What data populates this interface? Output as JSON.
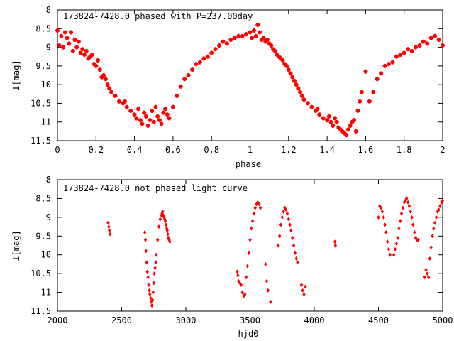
{
  "chart_data": [
    {
      "type": "scatter",
      "title": "173824-7428.0 phased with P=237.00day",
      "xlabel": "phase",
      "ylabel": "I[mag]",
      "xlim": [
        0,
        2
      ],
      "ylim": [
        8,
        11.5
      ],
      "y_inverted": true,
      "x_ticks": [
        "0",
        "0.2",
        "0.4",
        "0.6",
        "0.8",
        "1",
        "1.2",
        "1.4",
        "1.6",
        "1.8",
        "2"
      ],
      "y_ticks": [
        "8",
        "8.5",
        "9",
        "9.5",
        "10",
        "10.5",
        "11",
        "11.5"
      ],
      "grid": false,
      "marker": "plus-cross",
      "color": "#ff0000",
      "series": [
        {
          "x": [
            0.0,
            0.01,
            0.02,
            0.03,
            0.04,
            0.05,
            0.06,
            0.07,
            0.08,
            0.09,
            0.1,
            0.11,
            0.12,
            0.13,
            0.14,
            0.15,
            0.16,
            0.17,
            0.18,
            0.19,
            0.2,
            0.21,
            0.22,
            0.23,
            0.24,
            0.25,
            0.26,
            0.27,
            0.28,
            0.3,
            0.32,
            0.34,
            0.35,
            0.36,
            0.38,
            0.4,
            0.41,
            0.42,
            0.43,
            0.44,
            0.45,
            0.46,
            0.47,
            0.48,
            0.49,
            0.5,
            0.51,
            0.52,
            0.53,
            0.54,
            0.55,
            0.56,
            0.57,
            0.58,
            0.6,
            0.62,
            0.64,
            0.66,
            0.68,
            0.7,
            0.72,
            0.74,
            0.76,
            0.78,
            0.8,
            0.82,
            0.84,
            0.86,
            0.88,
            0.9,
            0.92,
            0.94,
            0.96,
            0.98,
            1.0,
            1.01,
            1.02,
            1.03,
            1.04,
            1.05,
            1.06,
            1.07,
            1.08,
            1.09,
            1.1,
            1.11,
            1.12,
            1.13,
            1.14,
            1.15,
            1.16,
            1.17,
            1.18,
            1.19,
            1.2,
            1.21,
            1.22,
            1.23,
            1.24,
            1.25,
            1.26,
            1.27,
            1.28,
            1.3,
            1.32,
            1.34,
            1.35,
            1.36,
            1.38,
            1.4,
            1.41,
            1.42,
            1.43,
            1.44,
            1.45,
            1.46,
            1.47,
            1.48,
            1.49,
            1.5,
            1.51,
            1.52,
            1.53,
            1.54,
            1.55,
            1.56,
            1.57,
            1.58,
            1.6,
            1.62,
            1.64,
            1.66,
            1.68,
            1.7,
            1.72,
            1.74,
            1.76,
            1.78,
            1.8,
            1.82,
            1.84,
            1.86,
            1.88,
            1.9,
            1.92,
            1.94,
            1.96,
            1.98,
            2.0
          ],
          "y": [
            8.55,
            8.95,
            8.7,
            9.0,
            8.6,
            8.75,
            8.9,
            8.6,
            9.1,
            8.8,
            9.0,
            8.85,
            9.15,
            9.05,
            9.2,
            9.1,
            9.3,
            9.25,
            9.2,
            9.45,
            9.5,
            9.35,
            9.6,
            9.8,
            9.75,
            9.85,
            10.0,
            10.1,
            10.2,
            10.3,
            10.45,
            10.5,
            10.45,
            10.6,
            10.7,
            10.8,
            10.9,
            10.65,
            10.95,
            11.05,
            10.75,
            10.85,
            11.1,
            10.95,
            10.7,
            11.0,
            10.6,
            10.85,
            10.95,
            11.05,
            10.75,
            10.65,
            10.8,
            10.9,
            10.6,
            10.3,
            10.05,
            9.85,
            9.75,
            9.6,
            9.45,
            9.4,
            9.3,
            9.25,
            9.15,
            9.05,
            8.95,
            8.85,
            8.9,
            8.8,
            8.75,
            8.7,
            8.7,
            8.65,
            8.6,
            8.75,
            8.55,
            8.7,
            8.4,
            8.6,
            8.8,
            8.75,
            8.85,
            8.8,
            8.9,
            8.95,
            9.05,
            9.1,
            9.2,
            9.25,
            9.3,
            9.35,
            9.45,
            9.5,
            9.6,
            9.7,
            9.8,
            9.9,
            10.0,
            10.1,
            10.2,
            10.3,
            10.4,
            10.5,
            10.6,
            10.7,
            10.65,
            10.8,
            10.9,
            10.95,
            10.85,
            11.0,
            11.1,
            10.9,
            11.0,
            11.15,
            11.2,
            11.25,
            11.3,
            11.35,
            11.2,
            11.1,
            11.0,
            10.95,
            11.25,
            10.7,
            10.45,
            10.2,
            9.65,
            10.45,
            10.2,
            9.85,
            9.7,
            9.5,
            9.45,
            9.4,
            9.25,
            9.2,
            9.15,
            9.05,
            9.1,
            9.0,
            8.95,
            8.85,
            8.9,
            8.75,
            8.7,
            8.8,
            8.95
          ]
        }
      ]
    },
    {
      "type": "scatter",
      "title": "173824-7428.0 not phased light curve",
      "xlabel": "hjd0",
      "ylabel": "I[mag]",
      "xlim": [
        2000,
        5000
      ],
      "ylim": [
        8,
        11.5
      ],
      "y_inverted": true,
      "x_ticks": [
        "2000",
        "2500",
        "3000",
        "3500",
        "4000",
        "4500",
        "5000"
      ],
      "y_ticks": [
        "8",
        "8.5",
        "9",
        "9.5",
        "10",
        "10.5",
        "11",
        "11.5"
      ],
      "grid": false,
      "marker": "diamond",
      "color": "#ff0000",
      "series": [
        {
          "x": [
            2395,
            2400,
            2405,
            2410,
            2680,
            2685,
            2690,
            2695,
            2700,
            2705,
            2710,
            2715,
            2720,
            2725,
            2730,
            2735,
            2740,
            2745,
            2750,
            2755,
            2760,
            2765,
            2770,
            2780,
            2790,
            2800,
            2810,
            2815,
            2820,
            2825,
            2830,
            2835,
            2840,
            2845,
            2850,
            2855,
            2860,
            2865,
            2870,
            2875,
            3400,
            3405,
            3410,
            3420,
            3430,
            3440,
            3450,
            3460,
            3470,
            3480,
            3490,
            3500,
            3510,
            3520,
            3530,
            3540,
            3550,
            3560,
            3570,
            3580,
            3620,
            3630,
            3640,
            3660,
            3720,
            3730,
            3740,
            3750,
            3760,
            3770,
            3780,
            3790,
            3800,
            3810,
            3820,
            3830,
            3840,
            3850,
            3860,
            3870,
            3900,
            3910,
            3920,
            3930,
            4160,
            4165,
            4500,
            4510,
            4520,
            4530,
            4540,
            4550,
            4560,
            4570,
            4580,
            4590,
            4620,
            4630,
            4640,
            4650,
            4660,
            4670,
            4680,
            4690,
            4700,
            4710,
            4720,
            4730,
            4740,
            4750,
            4760,
            4770,
            4780,
            4790,
            4800,
            4810,
            4860,
            4870,
            4880,
            4890,
            4900,
            4910,
            4920,
            4930,
            4940,
            4950,
            4960,
            4970,
            4980,
            4990,
            5000
          ],
          "y": [
            9.15,
            9.25,
            9.35,
            9.45,
            9.4,
            9.6,
            9.9,
            10.2,
            10.45,
            10.6,
            10.8,
            10.95,
            11.05,
            11.15,
            11.25,
            11.35,
            11.2,
            11.0,
            10.75,
            10.5,
            10.35,
            10.2,
            10.0,
            9.6,
            9.25,
            9.05,
            8.95,
            8.9,
            8.85,
            8.95,
            9.0,
            9.05,
            9.1,
            9.2,
            9.3,
            9.35,
            9.45,
            9.55,
            9.6,
            9.65,
            10.45,
            10.55,
            10.7,
            10.75,
            10.8,
            11.0,
            11.1,
            11.05,
            10.6,
            10.3,
            9.95,
            9.6,
            9.3,
            9.1,
            8.9,
            8.75,
            8.65,
            8.6,
            8.65,
            8.75,
            10.25,
            10.7,
            10.95,
            11.25,
            9.75,
            9.5,
            9.2,
            9.0,
            8.85,
            8.75,
            8.8,
            8.9,
            9.05,
            9.2,
            9.35,
            9.55,
            9.75,
            9.95,
            10.1,
            10.2,
            10.8,
            10.95,
            11.05,
            10.85,
            9.65,
            9.75,
            9.0,
            8.7,
            8.75,
            8.85,
            9.0,
            9.2,
            9.4,
            9.65,
            9.85,
            10.0,
            10.0,
            9.85,
            9.7,
            9.55,
            9.3,
            9.1,
            8.9,
            8.75,
            8.6,
            8.55,
            8.5,
            8.6,
            8.7,
            8.85,
            9.0,
            9.2,
            9.4,
            9.55,
            9.6,
            9.6,
            10.6,
            10.4,
            10.5,
            10.6,
            10.1,
            9.8,
            9.5,
            9.3,
            9.15,
            9.0,
            8.85,
            8.8,
            8.7,
            8.6,
            8.55
          ]
        }
      ]
    }
  ]
}
